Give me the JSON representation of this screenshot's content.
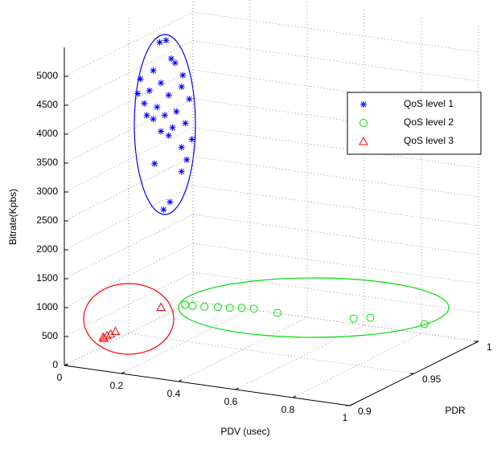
{
  "chart_data": {
    "type": "scatter3d",
    "xlabel": "PDV (usec)",
    "ylabel": "PDR",
    "zlabel": "Bitrate(Kpbs)",
    "xlim": [
      0,
      1
    ],
    "ylim": [
      0.9,
      1
    ],
    "zlim": [
      0,
      5500
    ],
    "xticks": [
      0,
      0.2,
      0.4,
      0.6,
      0.8,
      1
    ],
    "yticks": [
      0.9,
      0.95,
      1
    ],
    "zticks": [
      0,
      500,
      1000,
      1500,
      2000,
      2500,
      3000,
      3500,
      4000,
      4500,
      5000
    ],
    "grid": true,
    "legend": "upper right",
    "series": [
      {
        "name": "QoS level 1",
        "color": "#0000ff",
        "marker": "asterisk",
        "x": [
          0.05,
          0.05,
          0.05,
          0.05,
          0.05,
          0.05,
          0.05,
          0.05,
          0.05,
          0.05,
          0.05,
          0.05,
          0.05,
          0.05,
          0.05,
          0.05,
          0.05,
          0.05,
          0.05,
          0.05,
          0.05,
          0.05,
          0.05,
          0.05,
          0.05,
          0.05,
          0.05,
          0.05,
          0.05,
          0.05
        ],
        "y": [
          0.963,
          0.968,
          0.972,
          0.975,
          0.958,
          0.948,
          0.964,
          0.98,
          0.955,
          0.97,
          0.986,
          0.951,
          0.961,
          0.976,
          0.967,
          0.958,
          0.983,
          0.973,
          0.964,
          0.953,
          0.988,
          0.98,
          0.97,
          0.984,
          0.959,
          0.98,
          0.971,
          0.966,
          0.981,
          0.946
        ],
        "z": [
          4922,
          4901,
          4538,
          4433,
          4489,
          4454,
          4209,
          3965,
          4175,
          3930,
          3686,
          4000,
          3825,
          3581,
          3616,
          3651,
          3302,
          3337,
          3372,
          3770,
          2966,
          2918,
          3232,
          2659,
          2869,
          2499,
          2073,
          1996,
          4154,
          4223
        ]
      },
      {
        "name": "QoS level 2",
        "color": "#00dd00",
        "marker": "circle",
        "x": [
          0.315,
          0.341,
          0.378,
          0.416,
          0.453,
          0.486,
          0.524,
          0.58,
          0.788,
          0.828,
          0.98
        ],
        "y": [
          0.924,
          0.924,
          0.925,
          0.927,
          0.928,
          0.93,
          0.931,
          0.937,
          0.95,
          0.954,
          0.9625
        ],
        "z": [
          1000,
          1000,
          1000,
          1000,
          1000,
          1000,
          1000,
          900,
          800,
          800,
          700
        ]
      },
      {
        "name": "QoS level 3",
        "color": "#ff0000",
        "marker": "triangle",
        "x": [
          0.262,
          0.109,
          0.127,
          0.135,
          0.143,
          0.112
        ],
        "y": [
          0.917,
          0.906,
          0.905,
          0.906,
          0.908,
          0.906
        ],
        "z": [
          1000,
          500,
          550,
          570,
          600,
          480
        ]
      }
    ]
  }
}
